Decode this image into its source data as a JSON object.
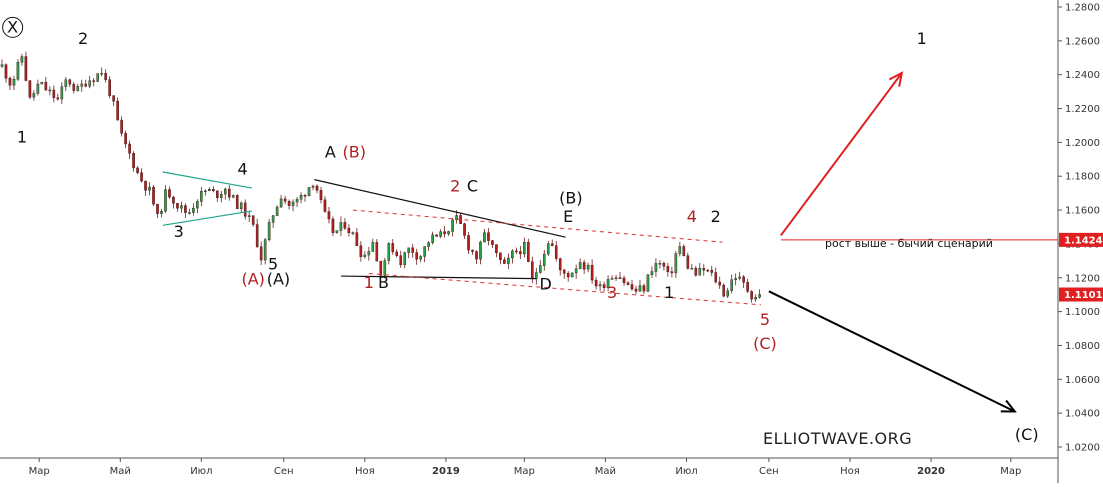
{
  "chart_data": {
    "type": "candlestick",
    "title": "",
    "xlabel": "",
    "ylabel": "",
    "ylim": [
      1.01,
      1.285
    ],
    "grid": false,
    "y_ticks": [
      "1.2800",
      "1.2600",
      "1.2400",
      "1.2200",
      "1.2000",
      "1.1800",
      "1.1600",
      "1.1400",
      "1.1200",
      "1.1000",
      "1.0800",
      "1.0600",
      "1.0400",
      "1.0200"
    ],
    "x_ticks": [
      {
        "label": "Мар",
        "date": "2018-03-01",
        "bold": false
      },
      {
        "label": "Май",
        "date": "2018-05-01",
        "bold": false
      },
      {
        "label": "Июл",
        "date": "2018-07-01",
        "bold": false
      },
      {
        "label": "Сен",
        "date": "2018-09-01",
        "bold": false
      },
      {
        "label": "Ноя",
        "date": "2018-11-01",
        "bold": false
      },
      {
        "label": "2019",
        "date": "2019-01-01",
        "bold": true
      },
      {
        "label": "Мар",
        "date": "2019-03-01",
        "bold": false
      },
      {
        "label": "Май",
        "date": "2019-05-01",
        "bold": false
      },
      {
        "label": "Июл",
        "date": "2019-07-01",
        "bold": false
      },
      {
        "label": "Сен",
        "date": "2019-09-01",
        "bold": false
      },
      {
        "label": "Ноя",
        "date": "2019-11-01",
        "bold": false
      },
      {
        "label": "2020",
        "date": "2020-01-01",
        "bold": true
      },
      {
        "label": "Мар",
        "date": "2020-03-01",
        "bold": false
      }
    ],
    "x_start": "2018-02-01",
    "x_end": "2020-04-01",
    "price_path": [
      [
        "2018-02-01",
        1.245
      ],
      [
        "2018-02-08",
        1.234
      ],
      [
        "2018-02-16",
        1.251
      ],
      [
        "2018-02-22",
        1.225
      ],
      [
        "2018-03-01",
        1.235
      ],
      [
        "2018-03-08",
        1.23
      ],
      [
        "2018-03-15",
        1.225
      ],
      [
        "2018-03-22",
        1.238
      ],
      [
        "2018-03-29",
        1.23
      ],
      [
        "2018-04-05",
        1.236
      ],
      [
        "2018-04-12",
        1.239
      ],
      [
        "2018-04-17",
        1.242
      ],
      [
        "2018-04-24",
        1.228
      ],
      [
        "2018-05-01",
        1.205
      ],
      [
        "2018-05-08",
        1.193
      ],
      [
        "2018-05-15",
        1.18
      ],
      [
        "2018-05-24",
        1.17
      ],
      [
        "2018-05-29",
        1.155
      ],
      [
        "2018-06-05",
        1.172
      ],
      [
        "2018-06-14",
        1.162
      ],
      [
        "2018-06-21",
        1.158
      ],
      [
        "2018-06-28",
        1.167
      ],
      [
        "2018-07-05",
        1.172
      ],
      [
        "2018-07-12",
        1.169
      ],
      [
        "2018-07-19",
        1.173
      ],
      [
        "2018-07-26",
        1.165
      ],
      [
        "2018-08-02",
        1.16
      ],
      [
        "2018-08-09",
        1.15
      ],
      [
        "2018-08-15",
        1.132
      ],
      [
        "2018-08-23",
        1.156
      ],
      [
        "2018-08-30",
        1.169
      ],
      [
        "2018-09-06",
        1.162
      ],
      [
        "2018-09-13",
        1.167
      ],
      [
        "2018-09-24",
        1.178
      ],
      [
        "2018-10-01",
        1.158
      ],
      [
        "2018-10-09",
        1.146
      ],
      [
        "2018-10-17",
        1.152
      ],
      [
        "2018-10-24",
        1.144
      ],
      [
        "2018-10-31",
        1.132
      ],
      [
        "2018-11-07",
        1.142
      ],
      [
        "2018-11-12",
        1.122
      ],
      [
        "2018-11-20",
        1.14
      ],
      [
        "2018-11-28",
        1.13
      ],
      [
        "2018-12-05",
        1.138
      ],
      [
        "2018-12-12",
        1.132
      ],
      [
        "2018-12-20",
        1.143
      ],
      [
        "2018-12-28",
        1.145
      ],
      [
        "2019-01-10",
        1.155
      ],
      [
        "2019-01-17",
        1.14
      ],
      [
        "2019-01-24",
        1.132
      ],
      [
        "2019-01-31",
        1.147
      ],
      [
        "2019-02-07",
        1.134
      ],
      [
        "2019-02-14",
        1.126
      ],
      [
        "2019-02-21",
        1.135
      ],
      [
        "2019-03-01",
        1.138
      ],
      [
        "2019-03-07",
        1.118
      ],
      [
        "2019-03-14",
        1.132
      ],
      [
        "2019-03-20",
        1.144
      ],
      [
        "2019-03-28",
        1.123
      ],
      [
        "2019-04-04",
        1.122
      ],
      [
        "2019-04-12",
        1.13
      ],
      [
        "2019-04-18",
        1.125
      ],
      [
        "2019-04-26",
        1.113
      ],
      [
        "2019-05-03",
        1.12
      ],
      [
        "2019-05-10",
        1.123
      ],
      [
        "2019-05-17",
        1.116
      ],
      [
        "2019-05-23",
        1.112
      ],
      [
        "2019-05-30",
        1.114
      ],
      [
        "2019-06-06",
        1.128
      ],
      [
        "2019-06-13",
        1.128
      ],
      [
        "2019-06-18",
        1.119
      ],
      [
        "2019-06-25",
        1.14
      ],
      [
        "2019-07-01",
        1.128
      ],
      [
        "2019-07-08",
        1.122
      ],
      [
        "2019-07-15",
        1.125
      ],
      [
        "2019-07-22",
        1.12
      ],
      [
        "2019-07-30",
        1.11
      ],
      [
        "2019-08-06",
        1.122
      ],
      [
        "2019-08-13",
        1.116
      ],
      [
        "2019-08-20",
        1.109
      ],
      [
        "2019-08-27",
        1.1101
      ]
    ],
    "lines": [
      {
        "name": "wedge-upper-line",
        "color": "#1ea68c",
        "dash": false,
        "from": [
          "2018-06-02",
          1.1825
        ],
        "to": [
          "2018-08-08",
          1.173
        ]
      },
      {
        "name": "wedge-lower-line",
        "color": "#1ea68c",
        "dash": false,
        "from": [
          "2018-06-02",
          1.151
        ],
        "to": [
          "2018-08-08",
          1.1595
        ]
      },
      {
        "name": "triangle-upper-line",
        "color": "#111111",
        "dash": false,
        "from": [
          "2018-09-24",
          1.178
        ],
        "to": [
          "2019-04-01",
          1.144
        ]
      },
      {
        "name": "triangle-lower-line",
        "color": "#111111",
        "dash": false,
        "from": [
          "2018-10-14",
          1.121
        ],
        "to": [
          "2019-03-10",
          1.1195
        ]
      },
      {
        "name": "channel-upper-line",
        "color": "#e03030",
        "dash": true,
        "from": [
          "2018-10-23",
          1.16
        ],
        "to": [
          "2019-07-28",
          1.141
        ]
      },
      {
        "name": "channel-lower-line",
        "color": "#e03030",
        "dash": true,
        "from": [
          "2018-11-04",
          1.1225
        ],
        "to": [
          "2019-08-26",
          1.104
        ]
      }
    ],
    "arrows": [
      {
        "name": "bullish-arrow",
        "color": "#e02020",
        "from": [
          "2019-09-10",
          1.145
        ],
        "to": [
          "2019-12-10",
          1.241
        ]
      },
      {
        "name": "bearish-arrow",
        "color": "#000000",
        "from": [
          "2019-09-01",
          1.112
        ],
        "to": [
          "2020-03-04",
          1.041
        ]
      }
    ],
    "level": {
      "name": "resistance-level",
      "color": "#e02020",
      "from_date": "2019-09-10",
      "value": 1.1424,
      "label": "1.1424"
    },
    "last_price": {
      "value": 1.1101,
      "label": "1.1101",
      "color": "#e02020"
    },
    "wave_labels": [
      {
        "text": "X",
        "date": "2018-02-09",
        "price": 1.265,
        "color": "#111111",
        "circled": true
      },
      {
        "text": "2",
        "date": "2018-04-03",
        "price": 1.258,
        "color": "#111111"
      },
      {
        "text": "1",
        "date": "2018-02-16",
        "price": 1.2,
        "color": "#111111"
      },
      {
        "text": "3",
        "date": "2018-06-14",
        "price": 1.144,
        "color": "#111111"
      },
      {
        "text": "4",
        "date": "2018-08-01",
        "price": 1.181,
        "color": "#111111"
      },
      {
        "text": "5",
        "date": "2018-08-24",
        "price": 1.125,
        "color": "#111111"
      },
      {
        "text": "(A)",
        "date": "2018-08-09",
        "price": 1.116,
        "color": "#b02020"
      },
      {
        "text": "(A)",
        "date": "2018-08-28",
        "price": 1.116,
        "color": "#111111"
      },
      {
        "text": "A",
        "date": "2018-10-06",
        "price": 1.191,
        "color": "#111111"
      },
      {
        "text": "(B)",
        "date": "2018-10-24",
        "price": 1.191,
        "color": "#b02020"
      },
      {
        "text": "1",
        "date": "2018-11-04",
        "price": 1.114,
        "color": "#b02020"
      },
      {
        "text": "B",
        "date": "2018-11-15",
        "price": 1.114,
        "color": "#111111"
      },
      {
        "text": "2",
        "date": "2019-01-08",
        "price": 1.171,
        "color": "#b02020"
      },
      {
        "text": "C",
        "date": "2019-01-21",
        "price": 1.171,
        "color": "#111111"
      },
      {
        "text": "(B)",
        "date": "2019-04-05",
        "price": 1.164,
        "color": "#111111"
      },
      {
        "text": "E",
        "date": "2019-04-03",
        "price": 1.153,
        "color": "#111111"
      },
      {
        "text": "D",
        "date": "2019-03-17",
        "price": 1.113,
        "color": "#111111"
      },
      {
        "text": "3",
        "date": "2019-05-06",
        "price": 1.108,
        "color": "#b02020"
      },
      {
        "text": "1",
        "date": "2019-06-18",
        "price": 1.108,
        "color": "#111111"
      },
      {
        "text": "4",
        "date": "2019-07-05",
        "price": 1.153,
        "color": "#b02020"
      },
      {
        "text": "2",
        "date": "2019-07-23",
        "price": 1.153,
        "color": "#111111"
      },
      {
        "text": "5",
        "date": "2019-08-29",
        "price": 1.092,
        "color": "#b02020"
      },
      {
        "text": "(C)",
        "date": "2019-08-29",
        "price": 1.078,
        "color": "#b02020"
      },
      {
        "text": "1",
        "date": "2019-12-25",
        "price": 1.258,
        "color": "#111111"
      },
      {
        "text": "(C)",
        "date": "2020-03-13",
        "price": 1.024,
        "color": "#111111"
      }
    ],
    "annotation": "рост выше - бычий сценарий",
    "watermark": "ELLIOTWAVE.ORG"
  }
}
